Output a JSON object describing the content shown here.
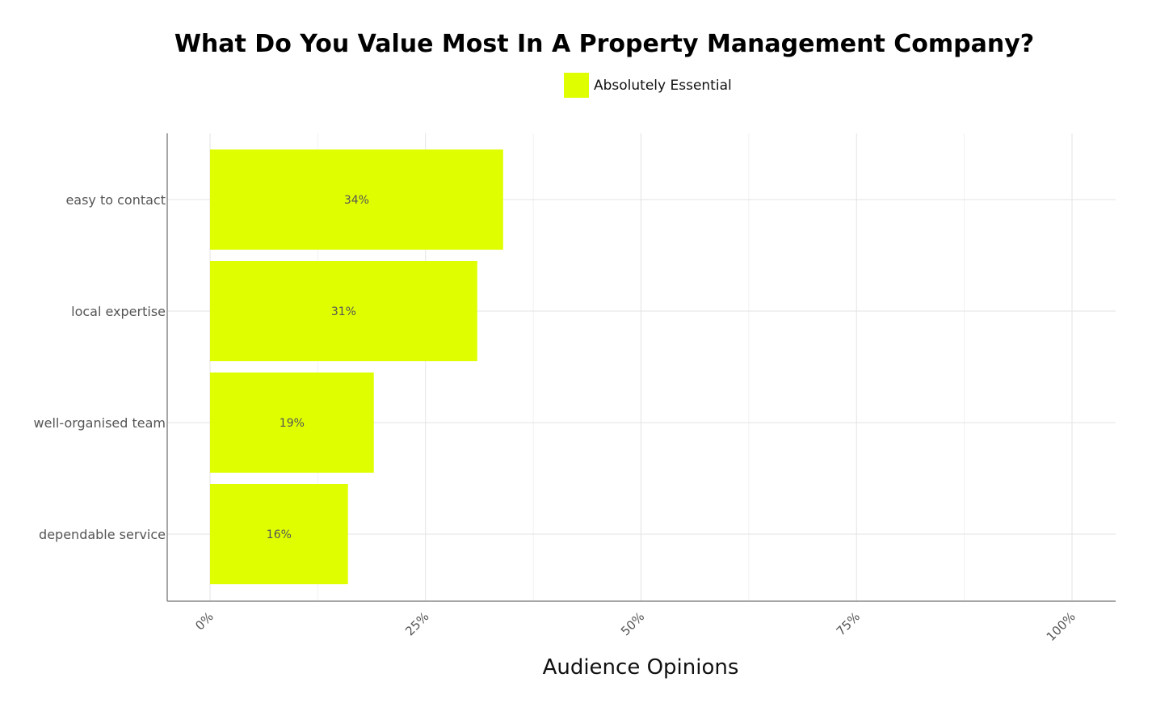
{
  "chart_data": {
    "type": "bar",
    "orientation": "horizontal",
    "title": "What Do You Value Most In A Property Management Company?",
    "xlabel": "Audience Opinions",
    "ylabel": "",
    "categories": [
      "easy to contact",
      "local expertise",
      "well-organised team",
      "dependable service"
    ],
    "series": [
      {
        "name": "Absolutely Essential",
        "values": [
          34,
          31,
          19,
          16
        ],
        "color": "#DFFF00"
      }
    ],
    "data_labels": [
      "34%",
      "31%",
      "19%",
      "16%"
    ],
    "xlim": [
      0,
      105
    ],
    "xticks": [
      0,
      25,
      50,
      75,
      100
    ],
    "xtick_labels": [
      "0%",
      "25%",
      "50%",
      "75%",
      "100%"
    ],
    "grid": true,
    "legend_position": "top-center"
  }
}
